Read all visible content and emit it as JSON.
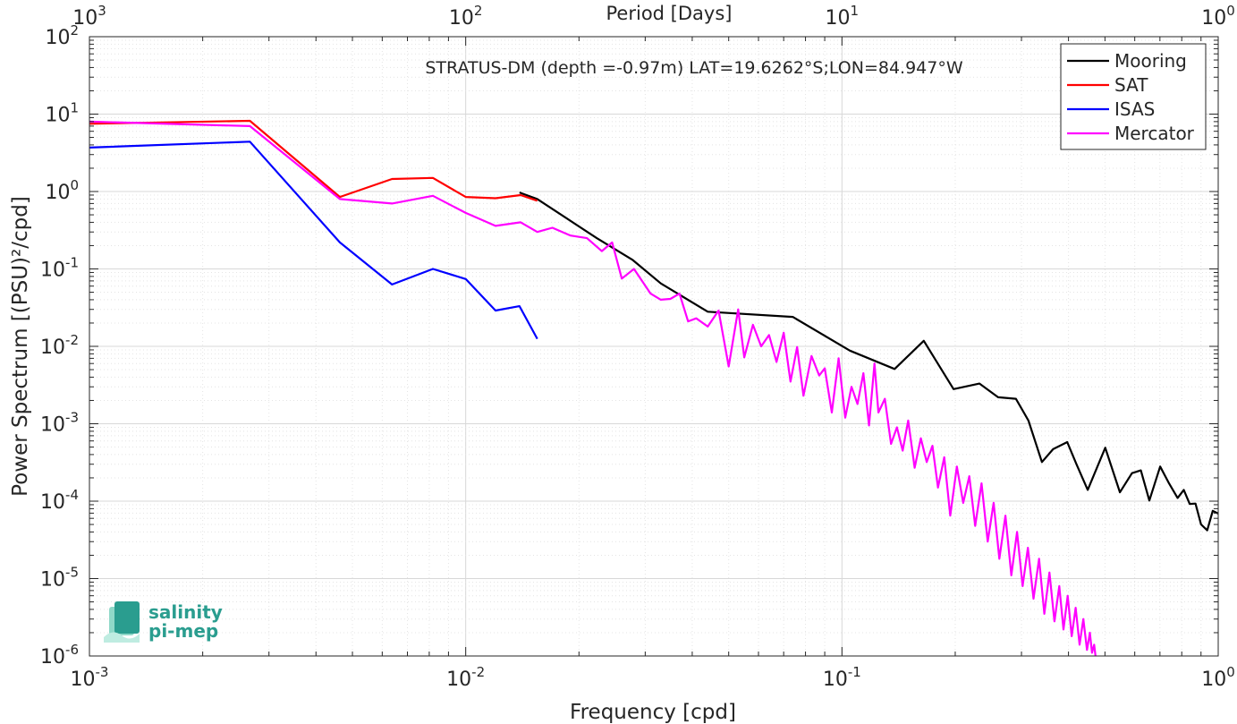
{
  "chart_data": {
    "type": "line",
    "title": "STRATUS-DM (depth =-0.97m) LAT=19.6262°S;LON=84.947°W",
    "xlabel": "Frequency [cpd]",
    "ylabel": "Power Spectrum [(PSU)²/cpd]",
    "top_xlabel": "Period [Days]",
    "x_scale": "log",
    "y_scale": "log",
    "xlim": [
      0.001,
      1
    ],
    "ylim": [
      1e-06,
      100
    ],
    "grid": true,
    "legend_position": "top-right",
    "x_ticks": [
      {
        "value": 0.001,
        "base": "10",
        "exp": "-3"
      },
      {
        "value": 0.01,
        "base": "10",
        "exp": "-2"
      },
      {
        "value": 0.1,
        "base": "10",
        "exp": "-1"
      },
      {
        "value": 1,
        "base": "10",
        "exp": "0"
      }
    ],
    "top_ticks": [
      {
        "value": 0.001,
        "base": "10",
        "exp": "3"
      },
      {
        "value": 0.01,
        "base": "10",
        "exp": "2"
      },
      {
        "value": 0.1,
        "base": "10",
        "exp": "1"
      },
      {
        "value": 1,
        "base": "10",
        "exp": "0"
      }
    ],
    "y_ticks": [
      {
        "value": 100,
        "base": "10",
        "exp": "2"
      },
      {
        "value": 10,
        "base": "10",
        "exp": "1"
      },
      {
        "value": 1,
        "base": "10",
        "exp": "0"
      },
      {
        "value": 0.1,
        "base": "10",
        "exp": "-1"
      },
      {
        "value": 0.01,
        "base": "10",
        "exp": "-2"
      },
      {
        "value": 0.001,
        "base": "10",
        "exp": "-3"
      },
      {
        "value": 0.0001,
        "base": "10",
        "exp": "-4"
      },
      {
        "value": 1e-05,
        "base": "10",
        "exp": "-5"
      },
      {
        "value": 1e-06,
        "base": "10",
        "exp": "-6"
      }
    ],
    "series": [
      {
        "name": "Mooring",
        "color": "#000000",
        "x": [
          0.0139,
          0.0155,
          0.0223,
          0.0278,
          0.033,
          0.044,
          0.074,
          0.105,
          0.138,
          0.165,
          0.198,
          0.232,
          0.26,
          0.29,
          0.313,
          0.34,
          0.364,
          0.397,
          0.42,
          0.45,
          0.501,
          0.548,
          0.59,
          0.623,
          0.656,
          0.701,
          0.74,
          0.78,
          0.81,
          0.84,
          0.87,
          0.9,
          0.935,
          0.967,
          1.0
        ],
        "y": [
          0.97,
          0.8,
          0.25,
          0.13,
          0.065,
          0.028,
          0.024,
          0.0088,
          0.0051,
          0.0118,
          0.0028,
          0.0033,
          0.0022,
          0.0021,
          0.0011,
          0.00032,
          0.00047,
          0.00058,
          0.0003,
          0.00014,
          0.00049,
          0.00013,
          0.00023,
          0.00025,
          0.000102,
          0.00028,
          0.00017,
          0.00011,
          0.00014,
          9.2e-05,
          9.3e-05,
          5e-05,
          4.2e-05,
          7.5e-05,
          6.9e-05
        ]
      },
      {
        "name": "SAT",
        "color": "#ff0000",
        "x": [
          0.001,
          0.00267,
          0.00463,
          0.00637,
          0.00818,
          0.01,
          0.012,
          0.014,
          0.0155
        ],
        "y": [
          7.5,
          8.2,
          0.85,
          1.45,
          1.5,
          0.85,
          0.82,
          0.9,
          0.76
        ]
      },
      {
        "name": "ISAS",
        "color": "#0000ff",
        "x": [
          0.001,
          0.00267,
          0.00463,
          0.00637,
          0.00818,
          0.01,
          0.012,
          0.0139,
          0.0155
        ],
        "y": [
          3.7,
          4.4,
          0.22,
          0.063,
          0.1,
          0.074,
          0.029,
          0.033,
          0.0125
        ]
      },
      {
        "name": "Mercator",
        "color": "#ff00ff",
        "x": [
          0.001,
          0.00267,
          0.00463,
          0.00637,
          0.00818,
          0.01,
          0.012,
          0.014,
          0.0155,
          0.017,
          0.019,
          0.021,
          0.023,
          0.0245,
          0.026,
          0.028,
          0.031,
          0.033,
          0.035,
          0.037,
          0.039,
          0.041,
          0.044,
          0.047,
          0.05,
          0.053,
          0.055,
          0.058,
          0.061,
          0.064,
          0.067,
          0.07,
          0.073,
          0.076,
          0.079,
          0.083,
          0.087,
          0.09,
          0.094,
          0.098,
          0.102,
          0.106,
          0.11,
          0.114,
          0.118,
          0.122,
          0.125,
          0.13,
          0.135,
          0.14,
          0.145,
          0.15,
          0.156,
          0.162,
          0.168,
          0.174,
          0.18,
          0.187,
          0.194,
          0.202,
          0.21,
          0.218,
          0.226,
          0.235,
          0.244,
          0.253,
          0.262,
          0.272,
          0.282,
          0.292,
          0.302,
          0.312,
          0.323,
          0.334,
          0.345,
          0.356,
          0.367,
          0.378,
          0.388,
          0.398,
          0.408,
          0.418,
          0.428,
          0.438,
          0.448,
          0.456,
          0.462,
          0.468,
          0.472
        ],
        "y": [
          8.0,
          7.0,
          0.8,
          0.7,
          0.88,
          0.53,
          0.36,
          0.4,
          0.3,
          0.34,
          0.27,
          0.25,
          0.17,
          0.22,
          0.075,
          0.1,
          0.048,
          0.04,
          0.041,
          0.048,
          0.021,
          0.023,
          0.018,
          0.029,
          0.0055,
          0.03,
          0.0072,
          0.019,
          0.01,
          0.014,
          0.0063,
          0.015,
          0.0035,
          0.0098,
          0.0023,
          0.0075,
          0.0042,
          0.0052,
          0.0014,
          0.007,
          0.0012,
          0.003,
          0.0018,
          0.0045,
          0.00095,
          0.006,
          0.0014,
          0.0021,
          0.00055,
          0.0009,
          0.00045,
          0.0011,
          0.00027,
          0.00065,
          0.00032,
          0.00052,
          0.00015,
          0.00037,
          6.5e-05,
          0.00028,
          9.5e-05,
          0.00021,
          4.8e-05,
          0.00017,
          3e-05,
          9.5e-05,
          1.8e-05,
          6.5e-05,
          1.1e-05,
          4e-05,
          8e-06,
          2.5e-05,
          5.5e-06,
          1.8e-05,
          3.5e-06,
          1.2e-05,
          2.8e-06,
          8e-06,
          2.2e-06,
          6e-06,
          1.8e-06,
          4.2e-06,
          1.4e-06,
          3e-06,
          1.2e-06,
          2e-06,
          1.1e-06,
          1.4e-06,
          1e-06
        ]
      }
    ]
  },
  "logo": {
    "line1": "salinity",
    "line2": "pi-mep"
  }
}
